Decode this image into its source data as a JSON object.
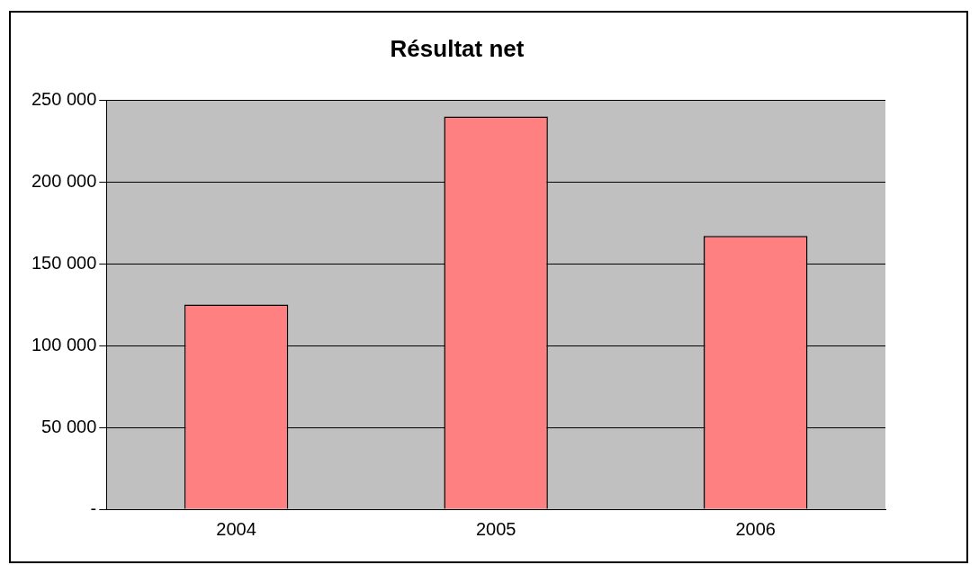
{
  "chart_data": {
    "type": "bar",
    "title": "Résultat net",
    "categories": [
      "2004",
      "2005",
      "2006"
    ],
    "values": [
      125000,
      240000,
      167000
    ],
    "color": "#ff8080",
    "ylim": [
      0,
      250000
    ],
    "yticks": [
      {
        "value": 0,
        "label": "-"
      },
      {
        "value": 50000,
        "label": "50 000"
      },
      {
        "value": 100000,
        "label": "100 000"
      },
      {
        "value": 150000,
        "label": "150 000"
      },
      {
        "value": 200000,
        "label": "200 000"
      },
      {
        "value": 250000,
        "label": "250 000"
      }
    ],
    "grid": "y",
    "legend": false
  }
}
